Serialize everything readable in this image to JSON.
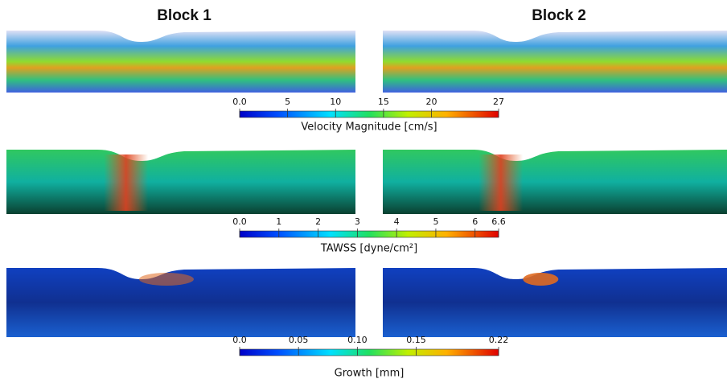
{
  "header": {
    "left": "Block 1",
    "right": "Block 2"
  },
  "colorbars": [
    {
      "label": "Velocity Magnitude [cm/s]",
      "ticks": [
        {
          "value": 0,
          "label": "0.0"
        },
        5,
        10,
        15,
        20,
        27
      ]
    },
    {
      "label": "TAWSS [dyne/cm²]",
      "ticks": [
        {
          "value": 0,
          "label": "0.0"
        },
        1,
        2,
        3,
        4,
        5,
        6,
        6.6
      ]
    },
    {
      "label": "Growth [mm]",
      "ticks": [
        {
          "value": 0,
          "label": "0.0"
        },
        0.05,
        {
          "value": 0.1,
          "label": "0.10"
        },
        0.15,
        0.22
      ]
    }
  ]
}
